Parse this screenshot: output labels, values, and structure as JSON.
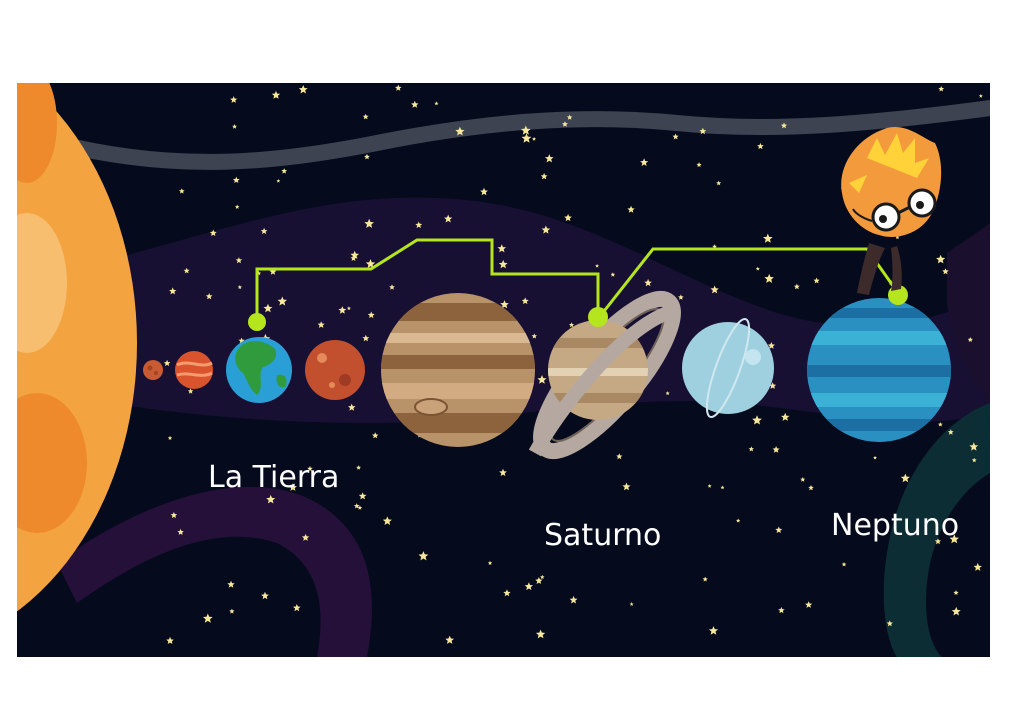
{
  "labels": {
    "earth": "La Tierra",
    "saturn": "Saturno",
    "neptune": "Neptuno"
  },
  "planets": [
    "mercury-icon",
    "venus-icon",
    "earth-icon",
    "mars-icon",
    "jupiter-icon",
    "saturn-icon",
    "uranus-icon",
    "neptune-icon"
  ],
  "colors": {
    "background": "#050b1c",
    "sun": "#f3a33f",
    "connector": "#b5e61d",
    "label": "#ffffff",
    "star": "#f6e79a"
  }
}
